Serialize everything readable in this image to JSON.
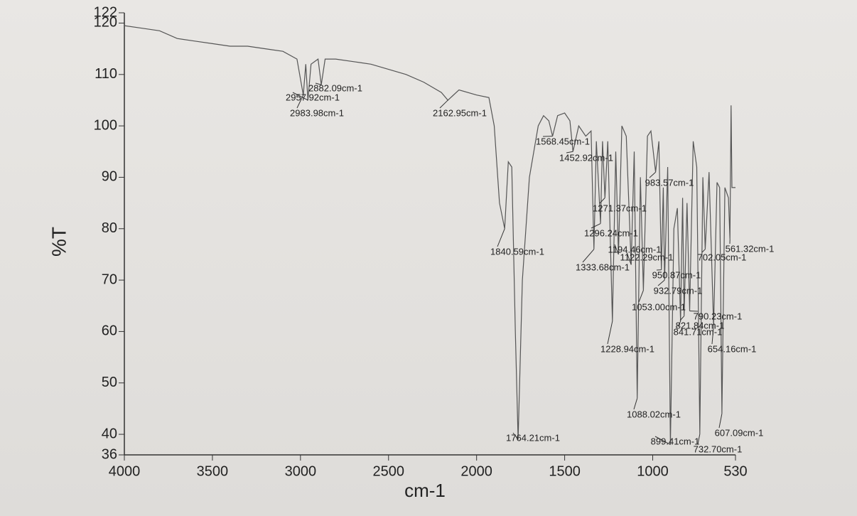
{
  "chart_data": {
    "type": "line",
    "xlabel": "cm-1",
    "ylabel": "%T",
    "xlim": [
      4000,
      530
    ],
    "ylim": [
      36,
      122
    ],
    "xticks": [
      4000,
      3500,
      3000,
      2500,
      2000,
      1500,
      1000,
      530
    ],
    "yticks": [
      36,
      40,
      50,
      60,
      70,
      80,
      90,
      100,
      110,
      120,
      122
    ],
    "color": "#555555",
    "x": [
      4000,
      3900,
      3800,
      3700,
      3600,
      3500,
      3400,
      3300,
      3200,
      3100,
      3020,
      2983.98,
      2970,
      2957.92,
      2940,
      2900,
      2882.09,
      2860,
      2800,
      2700,
      2600,
      2500,
      2400,
      2300,
      2200,
      2162.95,
      2100,
      2000,
      1930,
      1900,
      1870,
      1840.59,
      1820,
      1800,
      1780,
      1764.21,
      1740,
      1700,
      1650,
      1620,
      1590,
      1568.45,
      1540,
      1500,
      1470,
      1452.92,
      1420,
      1380,
      1350,
      1333.68,
      1320,
      1296.24,
      1285,
      1271.37,
      1255,
      1228.94,
      1210,
      1194.46,
      1175,
      1150,
      1122.29,
      1105,
      1088.02,
      1070,
      1053.0,
      1030,
      1010,
      983.57,
      965,
      950.87,
      940,
      932.79,
      915,
      899.41,
      880,
      860,
      841.71,
      830,
      821.84,
      805,
      790.23,
      770,
      750,
      732.7,
      715,
      702.05,
      680,
      654.16,
      635,
      620,
      607.09,
      590,
      570,
      561.32,
      555,
      550,
      530
    ],
    "values": [
      119.5,
      119,
      118.5,
      117,
      116.5,
      116,
      115.5,
      115.5,
      115,
      114.5,
      113,
      106,
      112,
      105,
      112,
      113,
      108,
      113,
      113,
      112.5,
      112,
      111,
      110,
      108.5,
      106.5,
      105,
      107,
      106,
      105.5,
      100,
      85,
      80,
      93,
      92,
      60,
      39,
      70,
      90,
      100,
      102,
      101,
      98,
      102,
      102.5,
      101,
      95,
      100,
      98,
      99,
      76,
      97,
      81,
      97,
      86,
      97,
      62,
      95,
      75,
      100,
      98,
      73,
      95,
      47,
      90,
      68,
      98,
      99,
      91,
      97,
      72,
      88,
      70,
      92,
      38,
      80,
      84,
      62,
      86,
      63,
      85,
      64,
      97,
      92,
      40,
      90,
      76,
      91,
      61,
      89,
      88,
      44,
      88,
      86,
      78,
      104,
      88,
      88
    ],
    "annotations": [
      {
        "label": "2983.98cm-1",
        "x": 2983.98,
        "y": 106
      },
      {
        "label": "2957.92cm-1",
        "x": 2957.92,
        "y": 105
      },
      {
        "label": "2882.09cm-1",
        "x": 2882.09,
        "y": 108
      },
      {
        "label": "2162.95cm-1",
        "x": 2162.95,
        "y": 105
      },
      {
        "label": "1840.59cm-1",
        "x": 1840.59,
        "y": 80
      },
      {
        "label": "1764.21cm-1",
        "x": 1764.21,
        "y": 39
      },
      {
        "label": "1568.45cm-1",
        "x": 1568.45,
        "y": 98
      },
      {
        "label": "1452.92cm-1",
        "x": 1452.92,
        "y": 95
      },
      {
        "label": "1333.68cm-1",
        "x": 1333.68,
        "y": 76
      },
      {
        "label": "1296.24cm-1",
        "x": 1296.24,
        "y": 81
      },
      {
        "label": "1271.37cm-1",
        "x": 1271.37,
        "y": 86
      },
      {
        "label": "1228.94cm-1",
        "x": 1228.94,
        "y": 62
      },
      {
        "label": "1194.46cm-1",
        "x": 1194.46,
        "y": 75
      },
      {
        "label": "1122.29cm-1",
        "x": 1122.29,
        "y": 73
      },
      {
        "label": "1088.02cm-1",
        "x": 1088.02,
        "y": 47
      },
      {
        "label": "1053.00cm-1",
        "x": 1053.0,
        "y": 68
      },
      {
        "label": "983.57cm-1",
        "x": 983.57,
        "y": 91
      },
      {
        "label": "950.87cm-1",
        "x": 950.87,
        "y": 72
      },
      {
        "label": "932.79cm-1",
        "x": 932.79,
        "y": 70
      },
      {
        "label": "899.41cm-1",
        "x": 899.41,
        "y": 38
      },
      {
        "label": "841.71cm-1",
        "x": 841.71,
        "y": 62
      },
      {
        "label": "821.84cm-1",
        "x": 821.84,
        "y": 63
      },
      {
        "label": "790.23cm-1",
        "x": 790.23,
        "y": 64
      },
      {
        "label": "732.70cm-1",
        "x": 732.7,
        "y": 40
      },
      {
        "label": "702.05cm-1",
        "x": 702.05,
        "y": 76
      },
      {
        "label": "654.16cm-1",
        "x": 654.16,
        "y": 61
      },
      {
        "label": "607.09cm-1",
        "x": 607.09,
        "y": 44
      },
      {
        "label": "561.32cm-1",
        "x": 561.32,
        "y": 78
      }
    ]
  }
}
